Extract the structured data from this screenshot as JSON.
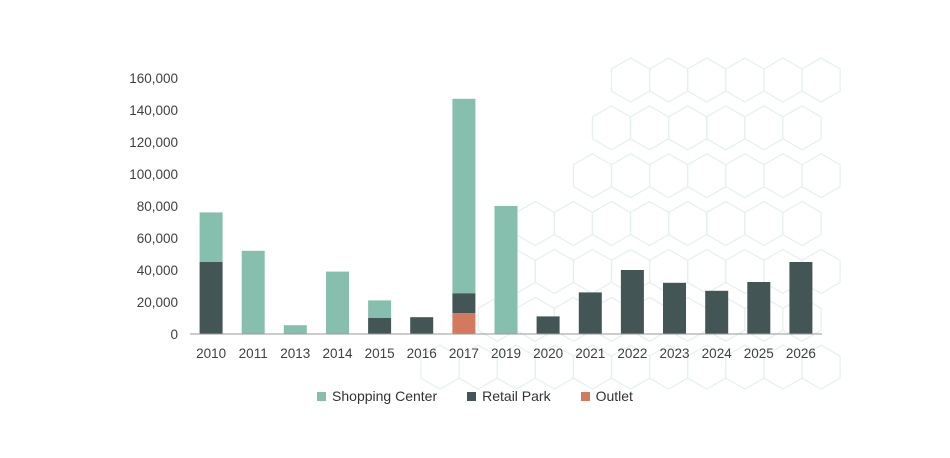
{
  "chart_data": {
    "type": "bar",
    "stacked": true,
    "categories": [
      "2010",
      "2011",
      "2013",
      "2014",
      "2015",
      "2016",
      "2017",
      "2019",
      "2020",
      "2021",
      "2022",
      "2023",
      "2024",
      "2025",
      "2026"
    ],
    "series": [
      {
        "name": "Outlet",
        "color": "#d37a5e",
        "values": [
          0,
          0,
          0,
          0,
          0,
          0,
          13000,
          0,
          0,
          0,
          0,
          0,
          0,
          0,
          0
        ]
      },
      {
        "name": "Retail Park",
        "color": "#445556",
        "values": [
          45000,
          0,
          0,
          0,
          10000,
          10500,
          12500,
          0,
          11000,
          26000,
          40000,
          32000,
          27000,
          32500,
          45000
        ]
      },
      {
        "name": "Shopping Center",
        "color": "#86bfae",
        "values": [
          31000,
          52000,
          5500,
          39000,
          11000,
          0,
          121500,
          80000,
          0,
          0,
          0,
          0,
          0,
          0,
          0
        ]
      }
    ],
    "legend": [
      {
        "name": "Shopping Center",
        "color": "#86bfae"
      },
      {
        "name": "Retail Park",
        "color": "#445556"
      },
      {
        "name": "Outlet",
        "color": "#d37a5e"
      }
    ],
    "ylim": [
      0,
      160000
    ],
    "yticks": [
      "0",
      "20,000",
      "40,000",
      "60,000",
      "80,000",
      "100,000",
      "120,000",
      "140,000",
      "160,000"
    ],
    "grid": false,
    "legend_position": "bottom",
    "title": "",
    "xlabel": "",
    "ylabel": ""
  }
}
